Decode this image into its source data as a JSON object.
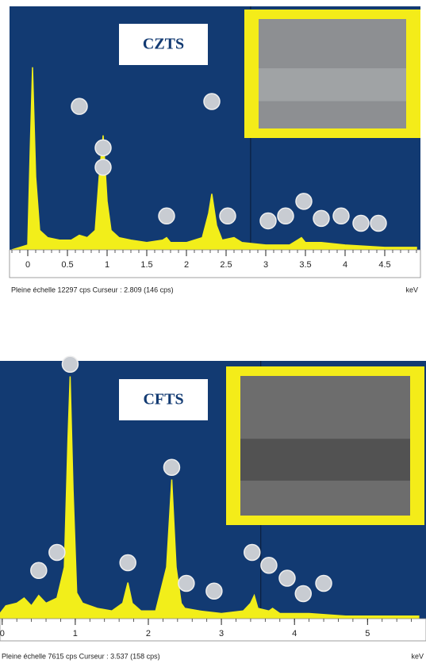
{
  "chart_data": [
    {
      "type": "area",
      "title": "CZTS",
      "xlabel": "keV",
      "caption": "Pleine échelle 12297 cps Curseur : 2.809 (146 cps)",
      "color": "#f2ee1a",
      "background": "#123a72",
      "x": [
        -0.2,
        0.0,
        0.03,
        0.06,
        0.1,
        0.15,
        0.25,
        0.4,
        0.55,
        0.65,
        0.75,
        0.85,
        0.9,
        0.95,
        1.0,
        1.05,
        1.15,
        1.3,
        1.5,
        1.7,
        1.75,
        1.8,
        2.0,
        2.2,
        2.28,
        2.32,
        2.38,
        2.45,
        2.6,
        2.7,
        3.0,
        3.3,
        3.4,
        3.45,
        3.5,
        3.7,
        4.0,
        4.5,
        4.9
      ],
      "values": [
        0,
        2,
        40,
        75,
        30,
        8,
        5,
        4,
        4,
        6,
        5,
        8,
        30,
        47,
        20,
        8,
        5,
        4,
        3,
        4,
        5,
        3,
        3,
        5,
        15,
        23,
        10,
        4,
        5,
        3,
        2,
        2,
        4,
        5,
        3,
        3,
        2,
        1,
        1
      ],
      "xlim": [
        -0.23,
        4.95
      ],
      "ylim": [
        0,
        100
      ],
      "xticks": [
        0,
        0.5,
        1,
        1.5,
        2,
        2.5,
        3,
        3.5,
        4,
        4.5
      ]
    },
    {
      "type": "area",
      "title": "CFTS",
      "xlabel": "keV",
      "caption": "Pleine échelle 7615 cps Curseur : 3.537 (158 cps)",
      "color": "#f2ee1a",
      "background": "#123a72",
      "x": [
        -0.03,
        0.05,
        0.2,
        0.3,
        0.4,
        0.5,
        0.6,
        0.75,
        0.85,
        0.9,
        0.93,
        0.97,
        1.02,
        1.1,
        1.3,
        1.5,
        1.65,
        1.72,
        1.78,
        1.9,
        2.1,
        2.25,
        2.32,
        2.38,
        2.45,
        2.5,
        2.7,
        3.0,
        3.3,
        3.4,
        3.45,
        3.5,
        3.65,
        3.7,
        3.8,
        4.2,
        4.7,
        5.7
      ],
      "values": [
        2,
        5,
        6,
        8,
        5,
        9,
        6,
        8,
        20,
        70,
        94,
        50,
        10,
        6,
        4,
        3,
        6,
        14,
        6,
        3,
        3,
        20,
        54,
        20,
        6,
        4,
        3,
        2,
        3,
        6,
        9,
        4,
        3,
        4,
        2,
        2,
        1,
        1
      ],
      "xlim": [
        -0.03,
        5.8
      ],
      "ylim": [
        0,
        100
      ],
      "xticks": [
        0,
        1,
        2,
        3,
        4,
        5
      ]
    }
  ]
}
